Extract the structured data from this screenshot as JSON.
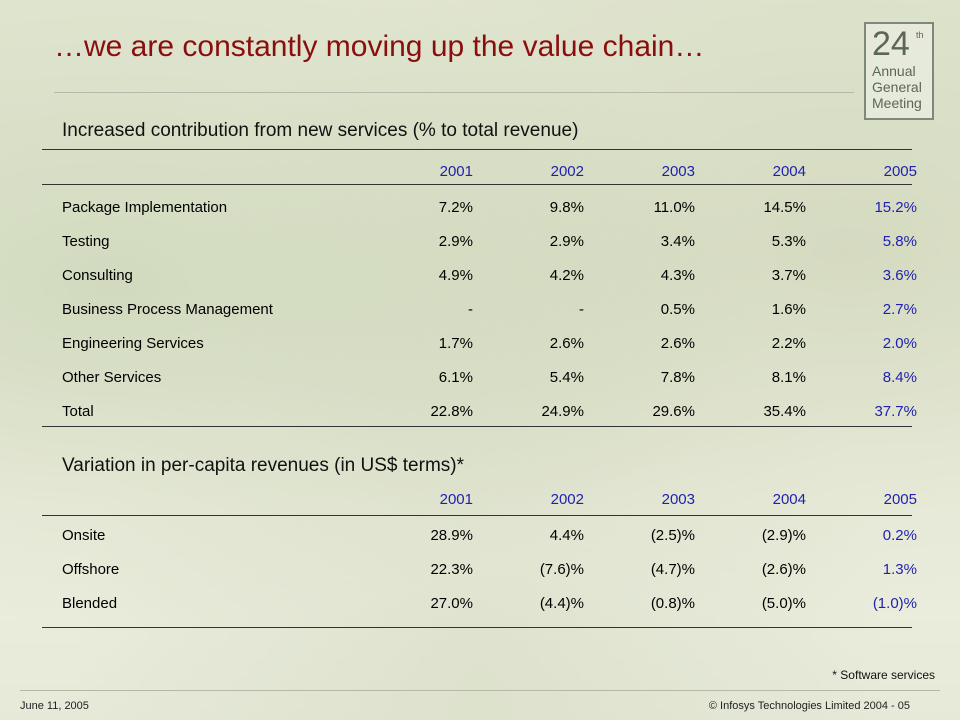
{
  "header": {
    "title": "…we are constantly moving up the value chain…",
    "logo": {
      "number": "24",
      "superscript": "th",
      "line1": "Annual",
      "line2": "General",
      "line3": "Meeting"
    }
  },
  "section1": {
    "title": "Increased contribution from new services (% to total revenue)",
    "years": [
      "2001",
      "2002",
      "2003",
      "2004",
      "2005"
    ],
    "rows": [
      {
        "label": "Package Implementation",
        "values": [
          "7.2%",
          "9.8%",
          "11.0%",
          "14.5%",
          "15.2%"
        ]
      },
      {
        "label": "Testing",
        "values": [
          "2.9%",
          "2.9%",
          "3.4%",
          "5.3%",
          "5.8%"
        ]
      },
      {
        "label": "Consulting",
        "values": [
          "4.9%",
          "4.2%",
          "4.3%",
          "3.7%",
          "3.6%"
        ]
      },
      {
        "label": "Business Process Management",
        "values": [
          "-",
          "-",
          "0.5%",
          "1.6%",
          "2.7%"
        ]
      },
      {
        "label": "Engineering Services",
        "values": [
          "1.7%",
          "2.6%",
          "2.6%",
          "2.2%",
          "2.0%"
        ]
      },
      {
        "label": "Other Services",
        "values": [
          "6.1%",
          "5.4%",
          "7.8%",
          "8.1%",
          "8.4%"
        ]
      },
      {
        "label": "Total",
        "values": [
          "22.8%",
          "24.9%",
          "29.6%",
          "35.4%",
          "37.7%"
        ]
      }
    ]
  },
  "section2": {
    "title": "Variation in per-capita revenues (in US$ terms)*",
    "years": [
      "2001",
      "2002",
      "2003",
      "2004",
      "2005"
    ],
    "rows": [
      {
        "label": "Onsite",
        "values": [
          "28.9%",
          "4.4%",
          "(2.5)%",
          "(2.9)%",
          "0.2%"
        ]
      },
      {
        "label": "Offshore",
        "values": [
          "22.3%",
          "(7.6)%",
          "(4.7)%",
          "(2.6)%",
          "1.3%"
        ]
      },
      {
        "label": "Blended",
        "values": [
          "27.0%",
          "(4.4)%",
          "(0.8)%",
          "(5.0)%",
          "(1.0)%"
        ]
      }
    ]
  },
  "footnote": "* Software services",
  "footer": {
    "date": "June 11, 2005",
    "copyright": "© Infosys Technologies Limited 2004 - 05"
  },
  "colors": {
    "title": "#8a0e0e",
    "highlight": "#1f1fb0"
  }
}
